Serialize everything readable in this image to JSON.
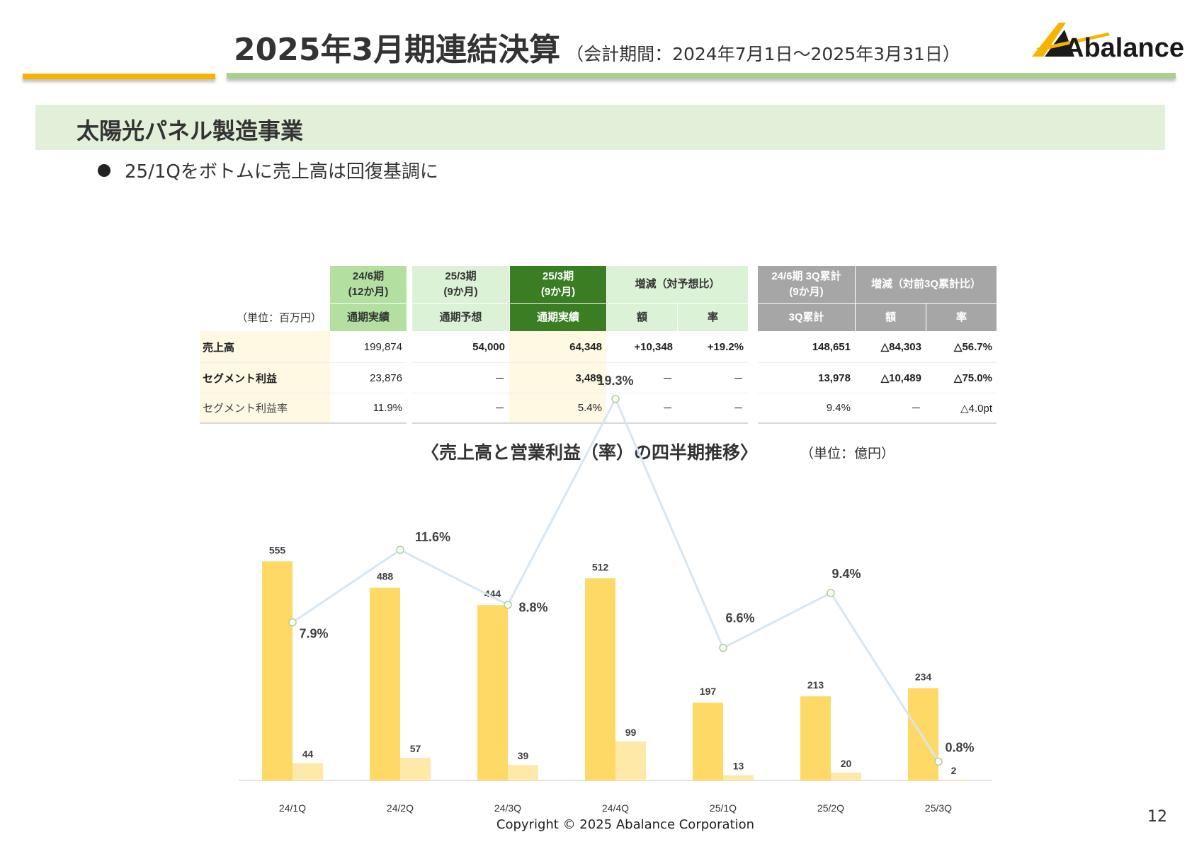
{
  "header": {
    "title_main": "2025年3月期連結決算",
    "title_sub": "（会計期間：2024年7月1日～2025年3月31日）",
    "logo_text": "Abalance"
  },
  "section": {
    "title": "太陽光パネル製造事業"
  },
  "bullets": [
    "25/1Qをボトムに売上高は回復基調に"
  ],
  "colors": {
    "accent_yellow": "#f5b400",
    "accent_green": "#a9cf8c",
    "header_dark_green": "#3a7d22",
    "header_gray": "#a6a6a6",
    "sales_bar": "#ffd965",
    "profit_bar": "#ffe9a8",
    "rate_line": "#d6e6f2"
  },
  "table": {
    "unit": "（単位：百万円）",
    "groups": {
      "g1": "24/6期\n(12か月)",
      "g2": "25/3期\n(9か月)",
      "g3": "25/3期\n(9か月)",
      "g4": "増減（対予想比）",
      "g5": "24/6期 3Q累計\n(9か月)",
      "g6": "増減（対前3Q累計比）"
    },
    "subheaders": [
      "通期実績",
      "通期予想",
      "通期実績",
      "額",
      "率",
      "3Q累計",
      "額",
      "率"
    ],
    "rows": [
      {
        "label": "売上高",
        "values": [
          "199,874",
          "54,000",
          "64,348",
          "+10,348",
          "+19.2%",
          "148,651",
          "△84,303",
          "△56.7%"
        ]
      },
      {
        "label": "セグメント利益",
        "values": [
          "23,876",
          "－",
          "3,489",
          "－",
          "－",
          "13,978",
          "△10,489",
          "△75.0%"
        ]
      },
      {
        "label": "セグメント利益率",
        "values": [
          "11.9%",
          "－",
          "5.4%",
          "－",
          "－",
          "9.4%",
          "－",
          "△4.0pt"
        ]
      }
    ]
  },
  "chart": {
    "title": "〈売上高と営業利益（率）の四半期推移〉",
    "unit": "（単位：億円）"
  },
  "chart_data": {
    "type": "bar",
    "categories": [
      "24/1Q",
      "24/2Q",
      "24/3Q",
      "24/4Q",
      "25/1Q",
      "25/2Q",
      "25/3Q"
    ],
    "series": [
      {
        "values": [
          555,
          488,
          444,
          512,
          197,
          213,
          234
        ],
        "color": "#ffd965"
      },
      {
        "values": [
          44,
          57,
          39,
          99,
          13,
          20,
          2
        ],
        "color": "#ffe9a8"
      },
      {
        "type": "line",
        "values": [
          7.9,
          11.6,
          8.8,
          19.3,
          6.6,
          9.4,
          0.8
        ],
        "labels": [
          "7.9%",
          "11.6%",
          "8.8%",
          "19.3%",
          "6.6%",
          "9.4%",
          "0.8%"
        ],
        "color": "#d6e6f2"
      }
    ],
    "bar_ylim": [
      0,
      600
    ],
    "line_ylim": [
      0,
      22
    ],
    "grid": false,
    "legend": "none"
  },
  "footer": {
    "copyright": "Copyright © 2025 Abalance Corporation",
    "page_number": "12"
  }
}
